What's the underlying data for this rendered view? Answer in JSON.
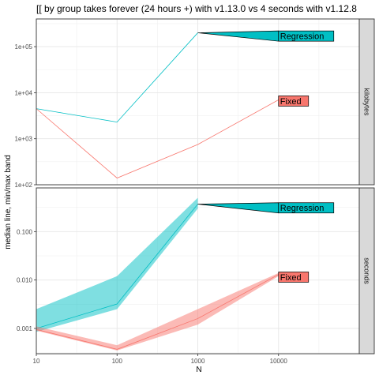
{
  "chart_data": {
    "type": "line",
    "title": "[[ by group takes forever (24 hours +) with v1.13.0 vs 4 seconds with v1.12.8",
    "xlabel": "N",
    "ylabel": "median line, min/max band",
    "x_scale": "log",
    "x_ticks": [
      "10",
      "100",
      "1000",
      "10000"
    ],
    "x_range": [
      10,
      100000
    ],
    "grid": true,
    "legend": "none",
    "colors": {
      "Regression": "#00bfc4",
      "Fixed": "#f8766d"
    },
    "panels": [
      {
        "strip": "kilobytes",
        "y_scale": "log",
        "y_range": [
          100,
          400000
        ],
        "y_ticks": [
          "1e+02",
          "1e+03",
          "1e+04",
          "1e+05"
        ],
        "series": [
          {
            "name": "Regression",
            "x": [
              10,
              100,
              1000
            ],
            "median": [
              4500,
              2300,
              200000
            ],
            "min": [
              4500,
              2300,
              200000
            ],
            "max": [
              4500,
              2300,
              200000
            ]
          },
          {
            "name": "Fixed",
            "x": [
              10,
              100,
              1000,
              10000
            ],
            "median": [
              4500,
              140,
              750,
              7000
            ],
            "min": [
              4500,
              140,
              750,
              7000
            ],
            "max": [
              4500,
              140,
              750,
              7000
            ]
          }
        ],
        "labels": [
          {
            "text": "Regression",
            "x": 10000,
            "y": 170000,
            "pointer_x": 1000,
            "pointer_y": 200000
          },
          {
            "text": "Fixed",
            "x": 10000,
            "y": 6600,
            "pointer_x": 10000,
            "pointer_y": 7000
          }
        ]
      },
      {
        "strip": "seconds",
        "y_scale": "log",
        "y_range": [
          0.0003,
          0.8
        ],
        "y_ticks": [
          "0.001",
          "0.010",
          "0.100"
        ],
        "series": [
          {
            "name": "Regression",
            "x": [
              10,
              100,
              1000
            ],
            "median": [
              0.001,
              0.0032,
              0.37
            ],
            "min": [
              0.00085,
              0.0025,
              0.3
            ],
            "max": [
              0.0025,
              0.012,
              0.5
            ]
          },
          {
            "name": "Fixed",
            "x": [
              10,
              100,
              1000,
              10000
            ],
            "median": [
              0.00095,
              0.00037,
              0.0016,
              0.013
            ],
            "min": [
              0.0009,
              0.00035,
              0.0012,
              0.012
            ],
            "max": [
              0.0011,
              0.00045,
              0.0025,
              0.014
            ]
          }
        ],
        "labels": [
          {
            "text": "Regression",
            "x": 10000,
            "y": 0.31,
            "pointer_x": 1000,
            "pointer_y": 0.37
          },
          {
            "text": "Fixed",
            "x": 10000,
            "y": 0.0115,
            "pointer_x": 10000,
            "pointer_y": 0.013
          }
        ]
      }
    ]
  }
}
